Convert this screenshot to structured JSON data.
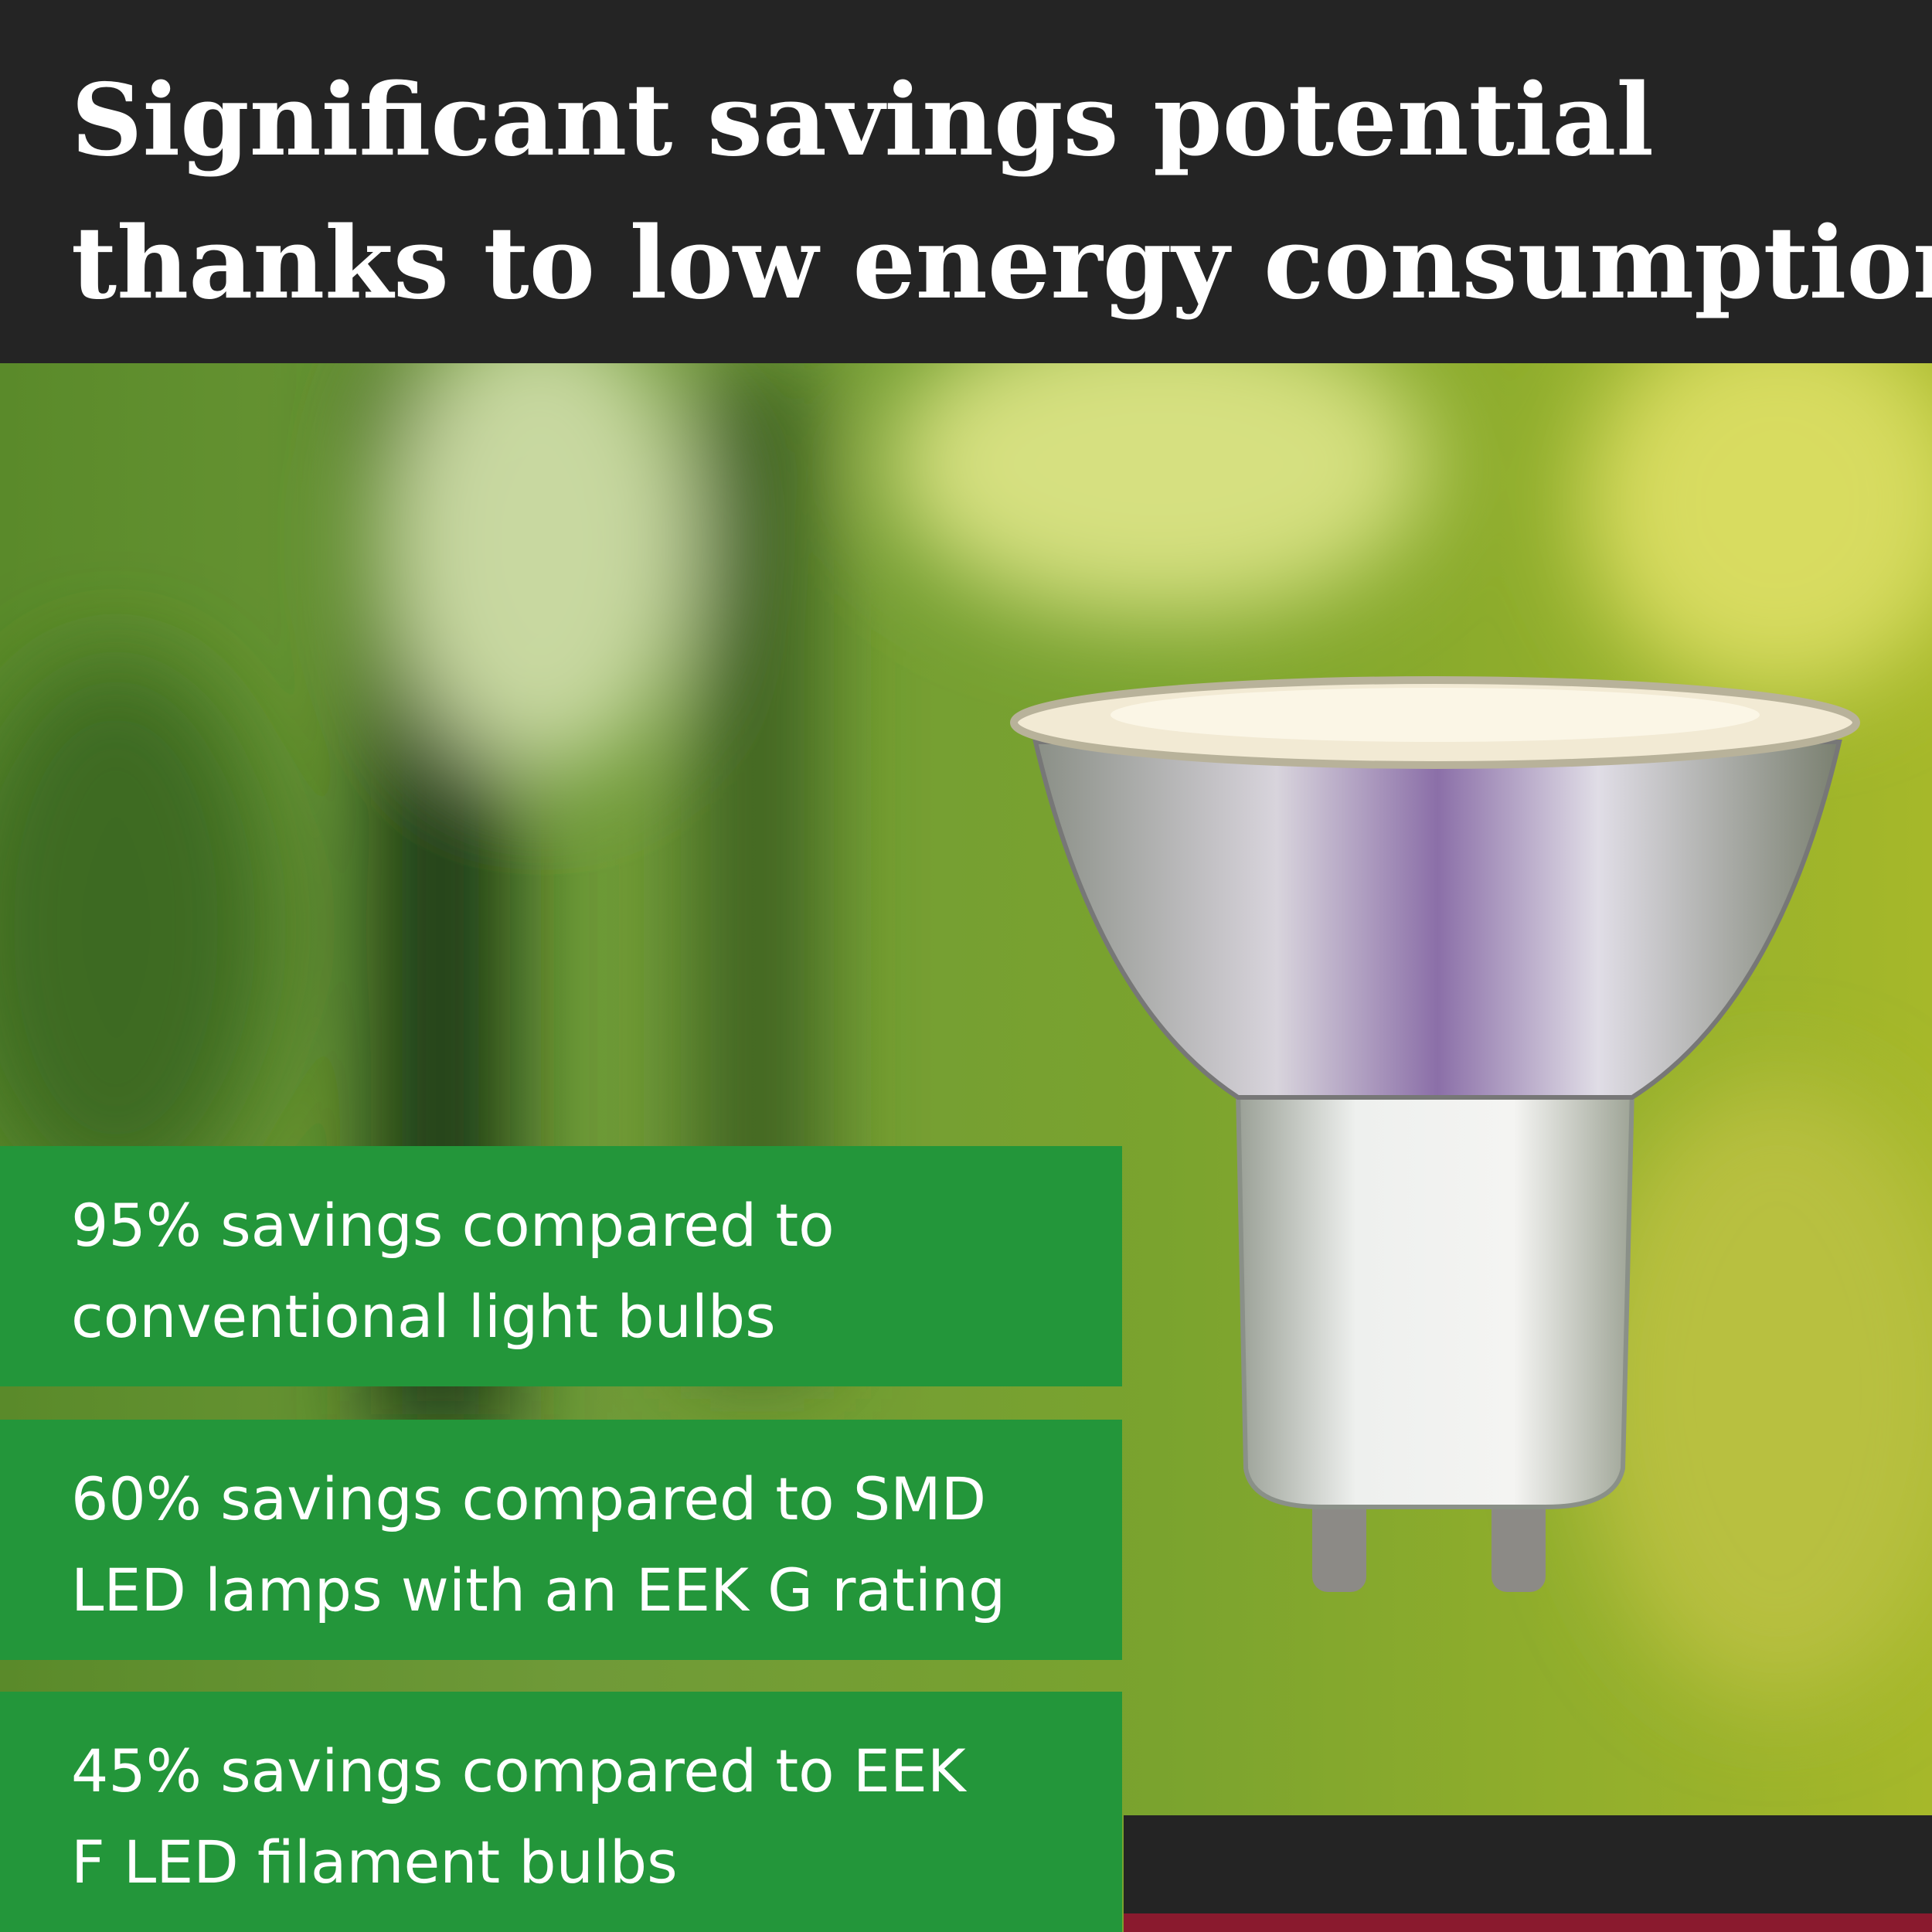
{
  "header": {
    "title_lines": [
      "Significant savings potential",
      "thanks to low energy consumption"
    ]
  },
  "features": [
    {
      "lines": [
        "95% savings compared to",
        "conventional light bulbs"
      ]
    },
    {
      "lines": [
        "60% savings compared to SMD",
        "LED lamps with an EEK G rating"
      ]
    },
    {
      "lines": [
        "45% savings compared to EEK",
        "F LED filament bulbs"
      ]
    }
  ]
}
